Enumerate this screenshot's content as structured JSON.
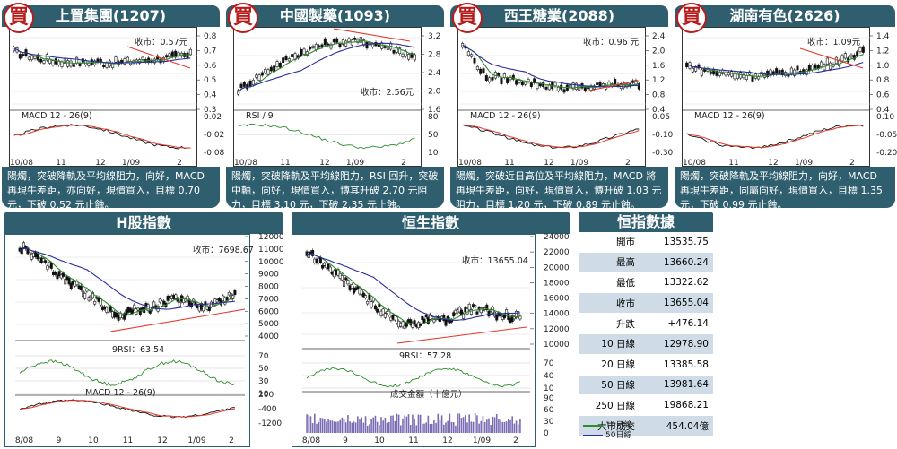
{
  "stocks": [
    {
      "badge": "買",
      "title": "上置集團(1207)",
      "close_label": "收市：0.57元",
      "main_ticks": [
        "0.8",
        "0.7",
        "0.6",
        "0.5",
        "0.4",
        "0.3"
      ],
      "ind_label": "MACD 12 - 26(9)",
      "ind_ticks": [
        "0.02",
        "-0.02",
        "-0.08"
      ],
      "x_ticks": [
        "10/08",
        "11",
        "12",
        "1/09",
        "2"
      ],
      "comment": "陽燭，突破降軌及平均線阻力，向好，MACD 再現牛差距，亦向好，現價買入，目標 0.70 元，下破 0.52 元止蝕。"
    },
    {
      "badge": "買",
      "title": "中國製藥(1093)",
      "close_label": "收市：2.56元",
      "main_ticks": [
        "3.2",
        "2.8",
        "2.4",
        "2.0",
        "1.6"
      ],
      "ind_label": "RSI / 9",
      "ind_ticks": [
        "80",
        "50",
        "10"
      ],
      "x_ticks": [
        "10/08",
        "11",
        "12",
        "1/09",
        "2"
      ],
      "comment": "陽燭，突破降軌及平均線阻力，RSI 回升，突破中軸，向好，現價買入，博其升破 2.70 元阻力，目標 3.10 元，下破 2.35 元止蝕。"
    },
    {
      "badge": "買",
      "title": "西王糖業(2088)",
      "close_label": "收市：0.96 元",
      "main_ticks": [
        "2.4",
        "2.0",
        "1.6",
        "1.2",
        "0.8",
        "0.4"
      ],
      "ind_label": "MACD 12 - 26(9)",
      "ind_ticks": [
        "0.05",
        "-0.10",
        "-0.30"
      ],
      "x_ticks": [
        "10/08",
        "11",
        "12",
        "1/09",
        "2"
      ],
      "comment": "陽燭，突破近日高位及平均線阻力，MACD 將再現牛差距，向好，現價買入，博升破 1.03 元阻力，目標 1.20 元，下破 0.89 元止蝕。"
    },
    {
      "badge": "買",
      "title": "湖南有色(2626)",
      "close_label": "收市：1.09元",
      "main_ticks": [
        "1.4",
        "1.2",
        "1.0",
        "0.8",
        "0.6",
        "0.4"
      ],
      "ind_label": "MACD 12 - 26(9)",
      "ind_ticks": [
        "0.10",
        "-0.05",
        "-0.20"
      ],
      "x_ticks": [
        "10/08",
        "11",
        "12",
        "1/09",
        "2"
      ],
      "comment": "陽燭，突破降軌及平均線阻力，向好，MACD 再現牛差距，同屬向好，現價買入，目標 1.35 元，下破 0.99 元止蝕。"
    }
  ],
  "hshares": {
    "title": "H股指數",
    "close_label": "收市：7698.67",
    "main_ticks": [
      "12000",
      "11000",
      "10000",
      "9000",
      "8000",
      "7000",
      "6000",
      "5000",
      "4000"
    ],
    "rsi_label": "9RSI：63.54",
    "rsi_ticks": [
      "70",
      "50",
      "30",
      "10"
    ],
    "macd_label": "MACD 12 - 26(9)",
    "macd_ticks": [
      "200",
      "-400",
      "-1200"
    ],
    "x_ticks": [
      "8/08",
      "9",
      "10",
      "11",
      "12",
      "1/09",
      "2"
    ]
  },
  "hsi": {
    "title": "恒生指數",
    "close_label": "收市：13655.04",
    "main_ticks": [
      "24000",
      "22000",
      "20000",
      "18000",
      "16000",
      "14000",
      "12000",
      "10000"
    ],
    "rsi_label": "9RSI：57.28",
    "rsi_ticks": [
      "70",
      "40",
      "10"
    ],
    "vol_label": "成交金額（十億元）",
    "vol_ticks": [
      "90",
      "60",
      "30",
      "0"
    ],
    "x_ticks": [
      "8/08",
      "9",
      "10",
      "11",
      "12",
      "1/09",
      "2"
    ]
  },
  "index_table": {
    "title": "恒指數據",
    "rows": [
      [
        "開市",
        "13535.75"
      ],
      [
        "最高",
        "13660.24"
      ],
      [
        "最低",
        "13322.62"
      ],
      [
        "收市",
        "13655.04"
      ],
      [
        "升跌",
        "+476.14"
      ],
      [
        "10 日線",
        "12978.90"
      ],
      [
        "20 日線",
        "13385.58"
      ],
      [
        "50 日線",
        "13981.64"
      ],
      [
        "250 日線",
        "19868.21"
      ],
      [
        "大市成交",
        "454.04億"
      ]
    ]
  },
  "legend": {
    "ma10": "10日線",
    "ma50": "50日線"
  },
  "colors": {
    "header": "#2f5e6e",
    "ma10": "#2e8b2e",
    "ma50": "#2b2b9a",
    "trend": "#e0392b",
    "badge": "#b71c1c"
  }
}
